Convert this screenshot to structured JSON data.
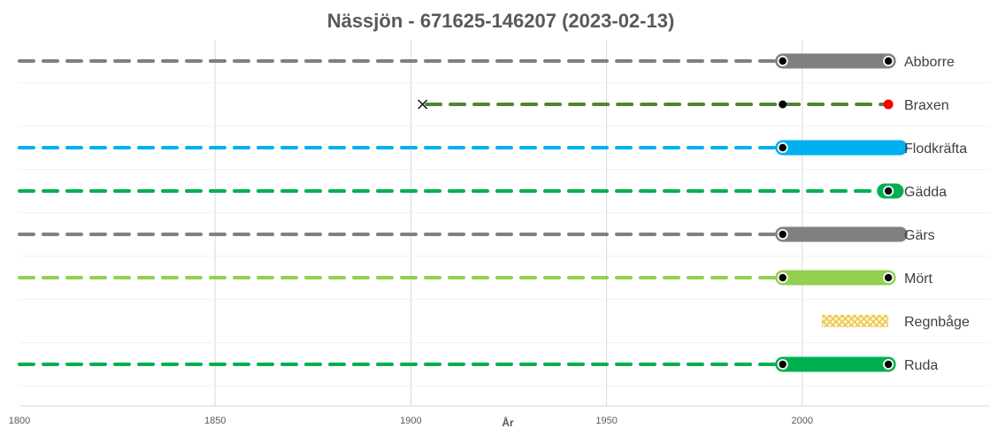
{
  "chart_data": {
    "type": "timeline",
    "title": "Nässjön - 671625-146207 (2023-02-13)",
    "xlabel": "År",
    "xlim": [
      1800,
      2050
    ],
    "xticks": [
      1800,
      1850,
      1900,
      1950,
      2000
    ],
    "grid": "vertical",
    "colors": {
      "gray": "#808080",
      "olive": "#548235",
      "blue": "#00b0f0",
      "green": "#00b050",
      "lightgreen": "#92d050",
      "yellow": "#ffd966",
      "red": "#ff0000"
    },
    "species": [
      {
        "name": "Abborre",
        "color": "#808080",
        "dashed": [
          1800,
          1995
        ],
        "solid": [
          1995,
          2022
        ],
        "points": [
          {
            "x": 1995,
            "style": "ring"
          },
          {
            "x": 2022,
            "style": "ring"
          }
        ]
      },
      {
        "name": "Braxen",
        "color": "#548235",
        "dashed": [
          1904,
          2021
        ],
        "solid": null,
        "first_record_x": 1903,
        "points": [
          {
            "x": 1995,
            "style": "black"
          },
          {
            "x": 2022,
            "style": "red"
          }
        ]
      },
      {
        "name": "Flodkräfta",
        "color": "#00b0f0",
        "dashed": [
          1800,
          1995
        ],
        "solid": [
          1995,
          2025
        ],
        "points": [
          {
            "x": 1995,
            "style": "ring"
          }
        ]
      },
      {
        "name": "Gädda",
        "color": "#00b050",
        "dashed": [
          1800,
          2019
        ],
        "solid": [
          2021,
          2024
        ],
        "points": [
          {
            "x": 2022,
            "style": "ring"
          }
        ]
      },
      {
        "name": "Gärs",
        "color": "#808080",
        "dashed": [
          1800,
          1995
        ],
        "solid": [
          1995,
          2025
        ],
        "points": [
          {
            "x": 1995,
            "style": "ring"
          }
        ]
      },
      {
        "name": "Mört",
        "color": "#92d050",
        "dashed": [
          1800,
          1995
        ],
        "solid": [
          1995,
          2022
        ],
        "points": [
          {
            "x": 1995,
            "style": "ring"
          },
          {
            "x": 2022,
            "style": "ring"
          }
        ]
      },
      {
        "name": "Regnbåge",
        "color": "#ffd966",
        "dashed": null,
        "solid": null,
        "hatched": [
          2005,
          2022
        ],
        "points": []
      },
      {
        "name": "Ruda",
        "color": "#00b050",
        "dashed": [
          1800,
          1995
        ],
        "solid": [
          1995,
          2022
        ],
        "points": [
          {
            "x": 1995,
            "style": "ring"
          },
          {
            "x": 2022,
            "style": "ring"
          }
        ]
      }
    ]
  }
}
